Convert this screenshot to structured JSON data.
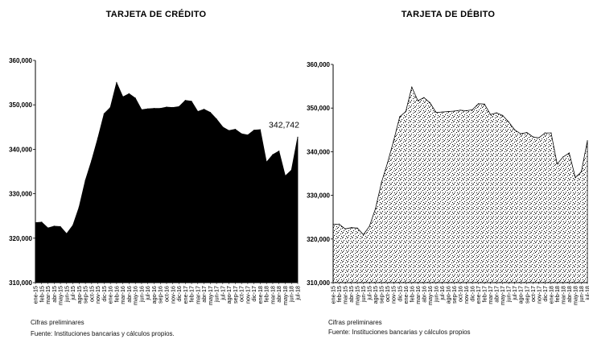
{
  "chart_data": [
    {
      "type": "area",
      "title": "TARJETA DE CRÉDITO",
      "fill": "#000000",
      "ylim": [
        310000,
        360000
      ],
      "ytick_labels": [
        "310,000",
        "320,000",
        "330,000",
        "340,000",
        "350,000",
        "360,000"
      ],
      "ytick_values": [
        310000,
        320000,
        330000,
        340000,
        350000,
        360000
      ],
      "annotation": "342,742",
      "categories": [
        "ene-15",
        "feb-15",
        "mar-15",
        "abr-15",
        "may-15",
        "jun-15",
        "jul-15",
        "ago-15",
        "sep-15",
        "oct-15",
        "nov-15",
        "dic-15",
        "ene-16",
        "feb-16",
        "mar-16",
        "abr-16",
        "may-16",
        "jun-16",
        "jul-16",
        "ago-16",
        "sep-16",
        "oct-16",
        "nov-16",
        "dic-16",
        "ene-17",
        "feb-17",
        "mar-17",
        "abr-17",
        "may-17",
        "jun-17",
        "jul-17",
        "ago-17",
        "sep-17",
        "oct-17",
        "nov-17",
        "dic-17",
        "ene-18",
        "feb-18",
        "mar-18",
        "abr-18",
        "may-18",
        "jun-18",
        "jul-18"
      ],
      "values": [
        323500,
        323600,
        322300,
        322700,
        322600,
        321000,
        322900,
        327000,
        333000,
        337500,
        342500,
        348000,
        349400,
        355000,
        351800,
        352500,
        351500,
        348900,
        349100,
        349200,
        349200,
        349500,
        349400,
        349600,
        351000,
        350800,
        348500,
        349000,
        348300,
        346800,
        345000,
        344200,
        344500,
        343500,
        343200,
        344300,
        344400,
        337100,
        338800,
        339600,
        334000,
        335300,
        342742
      ]
    },
    {
      "type": "area",
      "title": "TARJETA DE DÉBITO",
      "fill": "stipple",
      "ylim": [
        310000,
        360000
      ],
      "ytick_labels": [
        "310,000",
        "320,000",
        "330,000",
        "340,000",
        "350,000",
        "360,000"
      ],
      "ytick_values": [
        310000,
        320000,
        330000,
        340000,
        350000,
        360000
      ],
      "categories": [
        "ene-15",
        "feb-15",
        "mar-15",
        "abr-15",
        "may-15",
        "jun-15",
        "jul-15",
        "ago-15",
        "sep-15",
        "oct-15",
        "nov-15",
        "dic-15",
        "ene-16",
        "feb-16",
        "mar-16",
        "abr-16",
        "may-16",
        "jun-16",
        "jul-16",
        "ago-16",
        "sep-16",
        "oct-16",
        "nov-16",
        "dic-16",
        "ene-17",
        "feb-17",
        "mar-17",
        "abr-17",
        "may-17",
        "jun-17",
        "jul-17",
        "ago-17",
        "sep-17",
        "oct-17",
        "nov-17",
        "dic-17",
        "ene-18",
        "feb-18",
        "mar-18",
        "abr-18",
        "may-18",
        "jun-18",
        "jul-18"
      ],
      "values": [
        323400,
        323400,
        322300,
        322600,
        322500,
        321000,
        322900,
        327000,
        333000,
        337500,
        342500,
        348000,
        349200,
        354800,
        351700,
        352400,
        351200,
        349000,
        349100,
        349200,
        349300,
        349500,
        349400,
        349600,
        351000,
        350900,
        348500,
        348900,
        348300,
        346800,
        345000,
        344100,
        344400,
        343400,
        343200,
        344300,
        344300,
        337200,
        338800,
        339700,
        334100,
        335400,
        342500
      ]
    }
  ],
  "footnotes": {
    "left": [
      "Cifras preliminares",
      "Fuente: Instituciones bancarias y cálculos propios."
    ],
    "right": [
      "Cifras preliminares",
      "Fuente: Instituciones bancarias y cálculos propios"
    ]
  }
}
